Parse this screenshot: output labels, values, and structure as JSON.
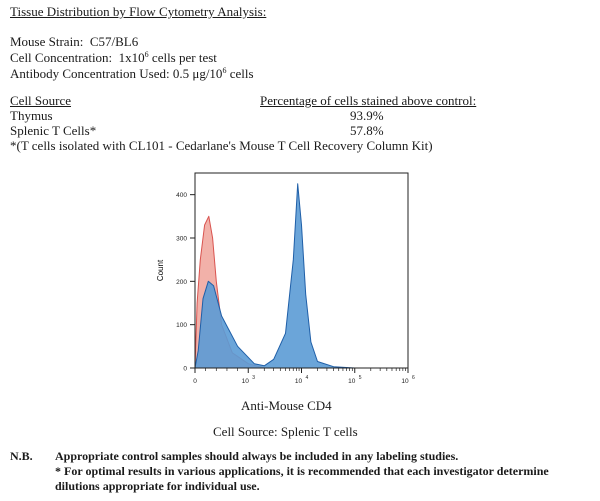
{
  "heading": "Tissue Distribution by Flow Cytometry Analysis:",
  "strain": {
    "label": "Mouse Strain:",
    "value": "C57/BL6"
  },
  "cell_conc": {
    "label": "Cell Concentration:",
    "prefix": "1x10",
    "exp": "6",
    "suffix": "cells per test"
  },
  "ab_conc": {
    "label": "Antibody Concentration Used:",
    "prefix": "0.5 μg/10",
    "exp": "6",
    "suffix": "cells"
  },
  "table": {
    "col_source": "Cell Source",
    "col_pct": "Percentage of cells stained above control:",
    "rows": [
      {
        "source": "Thymus",
        "pct": "93.9%"
      },
      {
        "source": "Splenic T Cells*",
        "pct": "57.8%"
      }
    ],
    "footnote": "*(T cells isolated with CL101 - Cedarlane's Mouse T Cell Recovery Column Kit)"
  },
  "chart_data": {
    "type": "area",
    "ylabel": "Count",
    "xlabel": "Anti-Mouse CD4",
    "caption": "Cell Source:  Splenic T cells",
    "x_scale": "log",
    "ylim": [
      0,
      450
    ],
    "y_ticks": [
      "0",
      "100",
      "200",
      "300",
      "400"
    ],
    "x_ticks": [
      {
        "base": "0",
        "exp": ""
      },
      {
        "base": "10",
        "exp": "3"
      },
      {
        "base": "10",
        "exp": "4"
      },
      {
        "base": "10",
        "exp": "5"
      },
      {
        "base": "10",
        "exp": "6"
      }
    ],
    "series": [
      {
        "color": "#f0a39a",
        "stroke": "#d9534f",
        "x": [
          0,
          40,
          100,
          180,
          260,
          330,
          400,
          500,
          700,
          1000,
          2000,
          5000,
          10000,
          100000,
          1000000
        ],
        "y": [
          0,
          150,
          250,
          330,
          350,
          300,
          200,
          100,
          35,
          10,
          0,
          0,
          0,
          0,
          0
        ]
      },
      {
        "color": "#5b9bd5",
        "stroke": "#1f5fa8",
        "x": [
          0,
          60,
          150,
          250,
          350,
          500,
          800,
          1300,
          2000,
          3000,
          5000,
          7000,
          8500,
          10000,
          12000,
          15000,
          20000,
          40000,
          100000,
          1000000
        ],
        "y": [
          0,
          40,
          160,
          200,
          190,
          120,
          50,
          10,
          5,
          20,
          80,
          250,
          425,
          330,
          170,
          60,
          15,
          3,
          0,
          0
        ]
      }
    ]
  },
  "nb": {
    "label": "N.B.",
    "line1": "Appropriate control samples should always be included in any labeling studies.",
    "line2": "* For optimal results in various applications, it is recommended that each investigator determine dilutions appropriate for individual use."
  }
}
